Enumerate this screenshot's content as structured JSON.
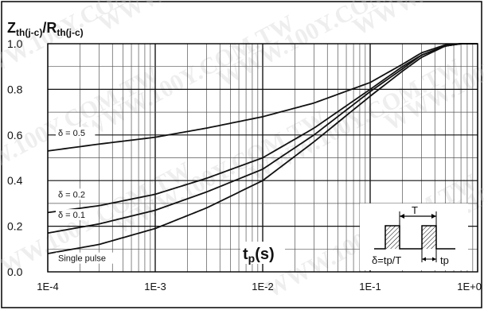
{
  "chart_data": {
    "type": "line",
    "title_main": "Z",
    "title_main_sub": "th(j-c)",
    "title_sep": "/R",
    "title_sep_sub": "th(j-c)",
    "xlabel_main": "t",
    "xlabel_sub": "p",
    "xlabel_unit": "(s)",
    "x_scale": "log",
    "xlim": [
      0.0001,
      1
    ],
    "ylim": [
      0,
      1
    ],
    "grid": true,
    "xticks": [
      {
        "value": 0.0001,
        "label": "1E-4"
      },
      {
        "value": 0.001,
        "label": "1E-3"
      },
      {
        "value": 0.01,
        "label": "1E-2"
      },
      {
        "value": 0.1,
        "label": "1E-1"
      },
      {
        "value": 1,
        "label": "1E+0"
      }
    ],
    "yticks": [
      {
        "value": 0.0,
        "label": "0.0"
      },
      {
        "value": 0.2,
        "label": "0.2"
      },
      {
        "value": 0.4,
        "label": "0.4"
      },
      {
        "value": 0.6,
        "label": "0.6"
      },
      {
        "value": 0.8,
        "label": "0.8"
      },
      {
        "value": 1.0,
        "label": "1.0"
      }
    ],
    "series": [
      {
        "name": "δ = 0.5",
        "x": [
          0.0001,
          0.0003,
          0.001,
          0.003,
          0.01,
          0.03,
          0.1,
          0.2,
          0.3,
          0.5,
          0.7,
          1
        ],
        "y": [
          0.53,
          0.56,
          0.59,
          0.63,
          0.68,
          0.74,
          0.83,
          0.91,
          0.96,
          0.995,
          1.0,
          1.0
        ]
      },
      {
        "name": "δ = 0.2",
        "x": [
          0.0001,
          0.0003,
          0.001,
          0.003,
          0.01,
          0.03,
          0.1,
          0.2,
          0.3,
          0.5,
          0.7,
          1
        ],
        "y": [
          0.26,
          0.29,
          0.34,
          0.41,
          0.5,
          0.63,
          0.8,
          0.9,
          0.95,
          0.99,
          1.0,
          1.0
        ]
      },
      {
        "name": "δ = 0.1",
        "x": [
          0.0001,
          0.0003,
          0.001,
          0.003,
          0.01,
          0.03,
          0.1,
          0.2,
          0.3,
          0.5,
          0.7,
          1
        ],
        "y": [
          0.17,
          0.21,
          0.27,
          0.35,
          0.45,
          0.6,
          0.79,
          0.89,
          0.95,
          0.99,
          1.0,
          1.0
        ]
      },
      {
        "name": "Single pulse",
        "x": [
          0.0001,
          0.0003,
          0.001,
          0.003,
          0.01,
          0.03,
          0.1,
          0.2,
          0.3,
          0.5,
          0.7,
          1
        ],
        "y": [
          0.08,
          0.12,
          0.19,
          0.28,
          0.4,
          0.57,
          0.77,
          0.88,
          0.94,
          0.99,
          1.0,
          1.0
        ]
      }
    ],
    "inset": {
      "period_label": "T",
      "duty_label": "δ=tp/T",
      "pulse_label": "tp"
    }
  },
  "watermark": {
    "text": "WWW.100Y.COM.TW",
    "color": "#cfcfcf"
  }
}
